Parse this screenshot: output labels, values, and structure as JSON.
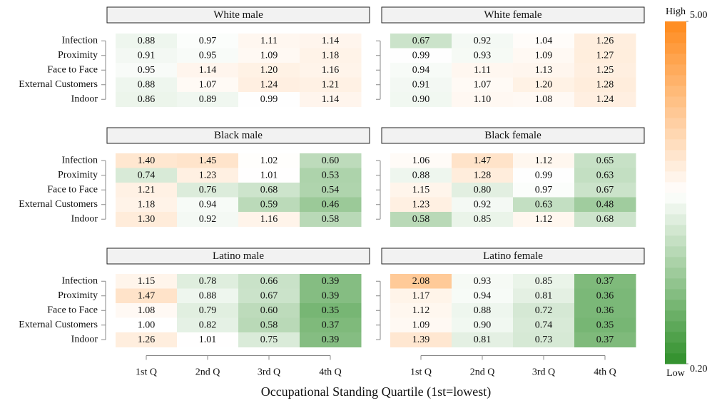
{
  "chart_data": {
    "type": "heatmap",
    "x_label": "Occupational Standing Quartile (1st=lowest)",
    "rows": [
      "Infection",
      "Proximity",
      "Face to Face",
      "External Customers",
      "Indoor"
    ],
    "columns": [
      "1st Q",
      "2nd Q",
      "3rd Q",
      "4th Q"
    ],
    "colorbar": {
      "high_label": "High",
      "low_label": "Low",
      "range": [
        0.2,
        5
      ],
      "log": true,
      "ticks": [
        {
          "value": 5,
          "label": "5.00"
        },
        {
          "value": 0.2,
          "label": "0.20"
        }
      ],
      "colors": {
        "low": "#2f8f2a",
        "mid": "#ffffff",
        "high": "#ff8a1c"
      }
    },
    "panels": [
      {
        "title": "White male",
        "values": [
          [
            0.88,
            0.97,
            1.11,
            1.14
          ],
          [
            0.91,
            0.95,
            1.09,
            1.18
          ],
          [
            0.95,
            1.14,
            1.2,
            1.16
          ],
          [
            0.88,
            1.07,
            1.24,
            1.21
          ],
          [
            0.86,
            0.89,
            0.99,
            1.14
          ]
        ],
        "value_labels": [
          [
            "0.88",
            "0.97",
            "1.11",
            "1.14"
          ],
          [
            "0.91",
            "0.95",
            "1.09",
            "1.18"
          ],
          [
            "0.95",
            "1.14",
            "1.20",
            "1.16"
          ],
          [
            "0.88",
            "1.07",
            "1.24",
            "1.21"
          ],
          [
            "0.86",
            "0.89",
            "0.99",
            "1.14"
          ]
        ]
      },
      {
        "title": "White female",
        "values": [
          [
            0.67,
            0.92,
            1.04,
            1.26
          ],
          [
            0.99,
            0.93,
            1.09,
            1.27
          ],
          [
            0.94,
            1.11,
            1.13,
            1.25
          ],
          [
            0.91,
            1.07,
            1.2,
            1.28
          ],
          [
            0.9,
            1.1,
            1.08,
            1.24
          ]
        ],
        "value_labels": [
          [
            "0.67",
            "0.92",
            "1.04",
            "1.26"
          ],
          [
            "0.99",
            "0.93",
            "1.09",
            "1.27"
          ],
          [
            "0.94",
            "1.11",
            "1.13",
            "1.25"
          ],
          [
            "0.91",
            "1.07",
            "1.20",
            "1.28"
          ],
          [
            "0.90",
            "1.10",
            "1.08",
            "1.24"
          ]
        ]
      },
      {
        "title": "Black male",
        "values": [
          [
            1.4,
            1.45,
            1.02,
            0.6
          ],
          [
            0.74,
            1.23,
            1.01,
            0.53
          ],
          [
            1.21,
            0.76,
            0.68,
            0.54
          ],
          [
            1.18,
            0.94,
            0.59,
            0.46
          ],
          [
            1.3,
            0.92,
            1.16,
            0.58
          ]
        ],
        "value_labels": [
          [
            "1.40",
            "1.45",
            "1.02",
            "0.60"
          ],
          [
            "0.74",
            "1.23",
            "1.01",
            "0.53"
          ],
          [
            "1.21",
            "0.76",
            "0.68",
            "0.54"
          ],
          [
            "1.18",
            "0.94",
            "0.59",
            "0.46"
          ],
          [
            "1.30",
            "0.92",
            "1.16",
            "0.58"
          ]
        ]
      },
      {
        "title": "Black female",
        "values": [
          [
            1.06,
            1.47,
            1.12,
            0.65
          ],
          [
            0.88,
            1.28,
            0.99,
            0.63
          ],
          [
            1.15,
            0.8,
            0.97,
            0.67
          ],
          [
            1.23,
            0.92,
            0.63,
            0.48
          ],
          [
            0.58,
            0.85,
            1.12,
            0.68
          ]
        ],
        "value_labels": [
          [
            "1.06",
            "1.47",
            "1.12",
            "0.65"
          ],
          [
            "0.88",
            "1.28",
            "0.99",
            "0.63"
          ],
          [
            "1.15",
            "0.80",
            "0.97",
            "0.67"
          ],
          [
            "1.23",
            "0.92",
            "0.63",
            "0.48"
          ],
          [
            "0.58",
            "0.85",
            "1.12",
            "0.68"
          ]
        ]
      },
      {
        "title": "Latino male",
        "values": [
          [
            1.15,
            0.78,
            0.66,
            0.39
          ],
          [
            1.47,
            0.88,
            0.67,
            0.39
          ],
          [
            1.08,
            0.79,
            0.6,
            0.35
          ],
          [
            1.0,
            0.82,
            0.58,
            0.37
          ],
          [
            1.26,
            1.01,
            0.75,
            0.39
          ]
        ],
        "value_labels": [
          [
            "1.15",
            "0.78",
            "0.66",
            "0.39"
          ],
          [
            "1.47",
            "0.88",
            "0.67",
            "0.39"
          ],
          [
            "1.08",
            "0.79",
            "0.60",
            "0.35"
          ],
          [
            "1.00",
            "0.82",
            "0.58",
            "0.37"
          ],
          [
            "1.26",
            "1.01",
            "0.75",
            "0.39"
          ]
        ]
      },
      {
        "title": "Latino female",
        "values": [
          [
            2.08,
            0.93,
            0.85,
            0.37
          ],
          [
            1.17,
            0.94,
            0.81,
            0.36
          ],
          [
            1.12,
            0.88,
            0.72,
            0.36
          ],
          [
            1.09,
            0.9,
            0.74,
            0.35
          ],
          [
            1.39,
            0.81,
            0.73,
            0.37
          ]
        ],
        "value_labels": [
          [
            "2.08",
            "0.93",
            "0.85",
            "0.37"
          ],
          [
            "1.17",
            "0.94",
            "0.81",
            "0.36"
          ],
          [
            "1.12",
            "0.88",
            "0.72",
            "0.36"
          ],
          [
            "1.09",
            "0.90",
            "0.74",
            "0.35"
          ],
          [
            "1.39",
            "0.81",
            "0.73",
            "0.37"
          ]
        ]
      }
    ]
  }
}
